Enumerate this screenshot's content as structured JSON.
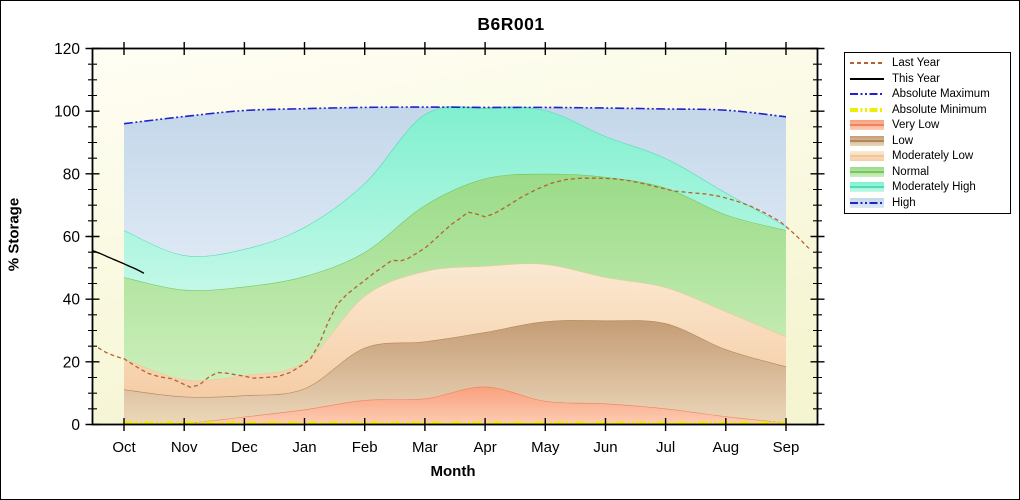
{
  "title": "B6R001",
  "axes": {
    "x_label": "Month",
    "y_label": "% Storage",
    "x_ticks": [
      "Oct",
      "Nov",
      "Dec",
      "Jan",
      "Feb",
      "Mar",
      "Apr",
      "May",
      "Jun",
      "Jul",
      "Aug",
      "Sep"
    ],
    "y_ticks": [
      "0",
      "20",
      "40",
      "60",
      "80",
      "100",
      "120"
    ],
    "y_major_values": [
      0,
      20,
      40,
      60,
      80,
      100,
      120
    ],
    "y_minor_step": 5,
    "ylim": [
      0,
      120
    ]
  },
  "colors": {
    "frame": "#000000",
    "plot_bg_light": "#fffef4",
    "plot_bg_deep": "#f5f5d2",
    "abs_max_line": "#2121cd",
    "abs_min_line": "#f0ee00",
    "last_year_line": "#b4632f",
    "this_year_line": "#000000"
  },
  "legend": {
    "items": [
      {
        "label": "Last Year",
        "kind": "line",
        "line_style": "dashed",
        "color": "#b4632f"
      },
      {
        "label": "This Year",
        "kind": "line",
        "line_style": "solid",
        "color": "#000000"
      },
      {
        "label": "Absolute Maximum",
        "kind": "line",
        "line_style": "dashdotdot",
        "color": "#2121cd"
      },
      {
        "label": "Absolute Minimum",
        "kind": "line-thick",
        "line_style": "dashdotdot",
        "color": "#f0ee00"
      },
      {
        "label": "Very Low",
        "kind": "band",
        "fill_top": "#f9a07d",
        "fill_bottom": "#fccdb4",
        "line": "#ef8260"
      },
      {
        "label": "Low",
        "kind": "band",
        "fill_top": "#c49c75",
        "fill_bottom": "#ecd7ba",
        "line": "#b0875a"
      },
      {
        "label": "Moderately Low",
        "kind": "band",
        "fill_top": "#fbe9d2",
        "fill_bottom": "#f5cda6",
        "line": "#eec89c"
      },
      {
        "label": "Normal",
        "kind": "band",
        "fill_top": "#9adb88",
        "fill_bottom": "#ccefbb",
        "line": "#76c763"
      },
      {
        "label": "Moderately High",
        "kind": "band",
        "fill_top": "#80f0cf",
        "fill_bottom": "#c2f8e7",
        "line": "#4edcb4"
      },
      {
        "label": "High",
        "kind": "band-line",
        "fill_top": "#c3d7ea",
        "fill_bottom": "#dde8f4",
        "line": "#2121cd",
        "line_style": "dashdotdot"
      }
    ]
  },
  "chart_data": {
    "type": "area",
    "title": "B6R001",
    "xlabel": "Month",
    "ylabel": "% Storage",
    "ylim": [
      0,
      120
    ],
    "legend_position": "top-right",
    "grid": false,
    "categories": [
      "Oct",
      "Nov",
      "Dec",
      "Jan",
      "Feb",
      "Mar",
      "Apr",
      "May",
      "Jun",
      "Jul",
      "Aug",
      "Sep"
    ],
    "levels": {
      "floor": [
        0,
        0,
        0,
        0,
        0,
        0,
        0,
        0,
        0,
        0,
        0,
        0
      ],
      "very_low_top": [
        0.2,
        0.5,
        2.5,
        4.8,
        7.8,
        8.3,
        12.1,
        7.5,
        6.7,
        5.1,
        2.6,
        0.6
      ],
      "low_top": [
        11.2,
        8.9,
        9.3,
        11.5,
        24.5,
        26.5,
        29.5,
        32.9,
        33.2,
        32.3,
        24,
        18.5
      ],
      "mod_low_top": [
        21,
        14.4,
        15.7,
        20,
        41,
        48.9,
        50.6,
        51.2,
        47,
        43.8,
        36.1,
        28.1
      ],
      "normal_top": [
        47,
        43,
        44,
        47.3,
        55,
        70,
        78.5,
        80,
        79,
        75.5,
        67,
        62
      ],
      "mod_high_top": [
        62,
        54,
        56,
        63,
        77,
        99,
        101,
        100.3,
        92,
        85,
        74,
        63.3
      ],
      "absolute_maximum": [
        96,
        98.3,
        100.2,
        100.8,
        101.2,
        101.3,
        101.2,
        101.2,
        101,
        100.7,
        100.3,
        98.2
      ]
    },
    "bands": [
      {
        "name": "Very Low",
        "from": "floor",
        "to": "very_low_top",
        "fill_top": "#f9a07d",
        "fill_bottom": "#fccdb4",
        "edge": "#ef8260"
      },
      {
        "name": "Low",
        "from": "very_low_top",
        "to": "low_top",
        "fill_top": "#c49c75",
        "fill_bottom": "#ecd7ba",
        "edge": "#b0875a"
      },
      {
        "name": "Moderately Low",
        "from": "low_top",
        "to": "mod_low_top",
        "fill_top": "#fbe9d2",
        "fill_bottom": "#f5cda6",
        "edge": "#eec89c"
      },
      {
        "name": "Normal",
        "from": "mod_low_top",
        "to": "normal_top",
        "fill_top": "#9adb88",
        "fill_bottom": "#ccefbb",
        "edge": "#76c763"
      },
      {
        "name": "Moderately High",
        "from": "normal_top",
        "to": "mod_high_top",
        "fill_top": "#80f0cf",
        "fill_bottom": "#c2f8e7",
        "edge": "#4edcb4"
      },
      {
        "name": "High",
        "from": "mod_high_top",
        "to": "absolute_maximum",
        "fill_top": "#c3d7ea",
        "fill_bottom": "#dde8f4",
        "edge": null
      }
    ],
    "series": [
      {
        "name": "Last Year",
        "style": "dashed",
        "color": "#b4632f",
        "width": 1.3,
        "points": [
          [
            -0.43,
            24.5
          ],
          [
            -0.3,
            23
          ],
          [
            -0.15,
            21.8
          ],
          [
            0,
            21
          ],
          [
            0.2,
            18.5
          ],
          [
            0.4,
            16.3
          ],
          [
            0.6,
            15.2
          ],
          [
            0.8,
            14.6
          ],
          [
            0.95,
            13.2
          ],
          [
            1.1,
            11.9
          ],
          [
            1.25,
            12.6
          ],
          [
            1.4,
            15
          ],
          [
            1.55,
            16.6
          ],
          [
            1.7,
            16.4
          ],
          [
            1.85,
            15.9
          ],
          [
            2,
            15.4
          ],
          [
            2.15,
            14.8
          ],
          [
            2.35,
            15
          ],
          [
            2.55,
            15.3
          ],
          [
            2.75,
            16.5
          ],
          [
            2.95,
            18.8
          ],
          [
            3.1,
            21
          ],
          [
            3.25,
            26
          ],
          [
            3.4,
            33
          ],
          [
            3.55,
            38.5
          ],
          [
            3.7,
            41.5
          ],
          [
            3.85,
            43.8
          ],
          [
            4,
            46
          ],
          [
            4.15,
            48.3
          ],
          [
            4.3,
            50.3
          ],
          [
            4.45,
            52.4
          ],
          [
            4.6,
            52.2
          ],
          [
            4.72,
            53
          ],
          [
            4.85,
            54.5
          ],
          [
            5,
            56.3
          ],
          [
            5.15,
            58.8
          ],
          [
            5.3,
            61.5
          ],
          [
            5.45,
            64
          ],
          [
            5.6,
            66
          ],
          [
            5.72,
            67.8
          ],
          [
            5.85,
            67.2
          ],
          [
            6,
            66.3
          ],
          [
            6.15,
            67.3
          ],
          [
            6.35,
            69.5
          ],
          [
            6.6,
            72.5
          ],
          [
            6.85,
            75
          ],
          [
            7.1,
            77
          ],
          [
            7.35,
            78.2
          ],
          [
            7.6,
            78.6
          ],
          [
            7.9,
            78.6
          ],
          [
            8.15,
            78.4
          ],
          [
            8.4,
            77.8
          ],
          [
            8.65,
            76.8
          ],
          [
            8.9,
            75.6
          ],
          [
            9.15,
            74.5
          ],
          [
            9.4,
            74
          ],
          [
            9.65,
            73.6
          ],
          [
            9.9,
            72.8
          ],
          [
            10.15,
            71.5
          ],
          [
            10.4,
            69.8
          ],
          [
            10.65,
            67.5
          ],
          [
            10.9,
            64.8
          ],
          [
            11.1,
            61.5
          ],
          [
            11.25,
            58.8
          ],
          [
            11.38,
            56.2
          ]
        ]
      },
      {
        "name": "This Year",
        "style": "solid",
        "color": "#000000",
        "width": 1.4,
        "points": [
          [
            -0.52,
            55.5
          ],
          [
            -0.4,
            54.6
          ],
          [
            -0.28,
            53.6
          ],
          [
            -0.16,
            52.6
          ],
          [
            -0.04,
            51.6
          ],
          [
            0.08,
            50.6
          ],
          [
            0.2,
            49.6
          ],
          [
            0.33,
            48.3
          ]
        ]
      },
      {
        "name": "Absolute Maximum",
        "style": "dashdotdot",
        "color": "#2121cd",
        "width": 1.6,
        "points": [
          [
            0,
            96
          ],
          [
            1,
            98.3
          ],
          [
            2,
            100.2
          ],
          [
            3,
            100.8
          ],
          [
            4,
            101.2
          ],
          [
            5,
            101.3
          ],
          [
            6,
            101.2
          ],
          [
            7,
            101.2
          ],
          [
            8,
            101
          ],
          [
            9,
            100.7
          ],
          [
            10,
            100.3
          ],
          [
            11,
            98.2
          ]
        ]
      },
      {
        "name": "Absolute Minimum",
        "style": "dashdotdot",
        "color": "#f0ee00",
        "width": 3,
        "points": [
          [
            0,
            0.5
          ],
          [
            3,
            0.5
          ],
          [
            6,
            0.5
          ],
          [
            9,
            0.5
          ],
          [
            11,
            0.5
          ]
        ]
      }
    ]
  }
}
